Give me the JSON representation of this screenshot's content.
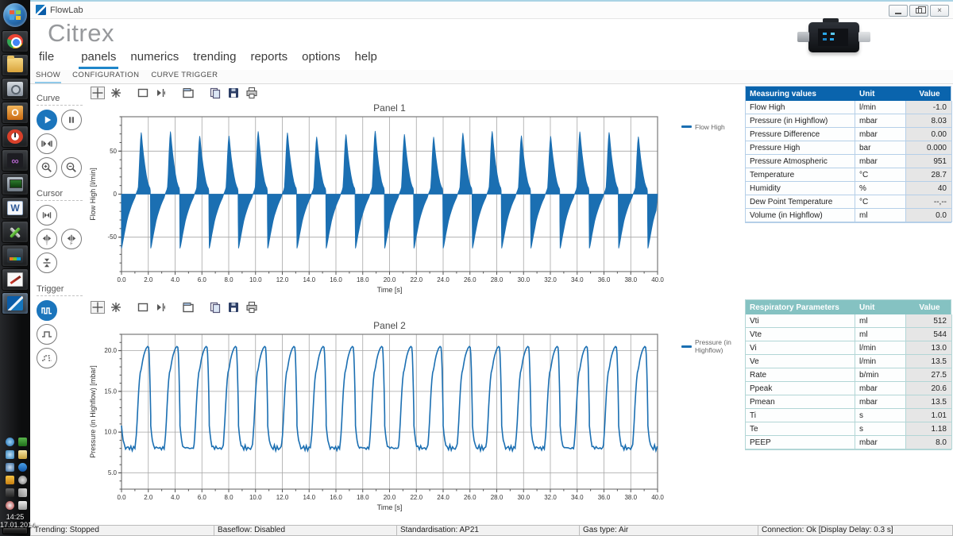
{
  "window": {
    "title": "FlowLab"
  },
  "app": {
    "title": "Citrex"
  },
  "taskbar": {
    "apps": [
      "chrome",
      "folder",
      "safe",
      "outlook",
      "timer",
      "vs",
      "remote",
      "word",
      "tools",
      "vmware",
      "paint",
      "flowlab"
    ],
    "app_glyph_letters": {
      "outlook": "O",
      "vs": "∞",
      "word": "W"
    },
    "tray": [
      "globe",
      "green-monitor",
      "gear-flower",
      "mail",
      "network",
      "bluetooth",
      "orange-app",
      "gray-dial",
      "battery",
      "signal",
      "volume-muted",
      "flag"
    ],
    "clock": "14:25",
    "date": "17.01.2014"
  },
  "window_controls": {
    "minimize": "minimize",
    "restore": "restore",
    "close": "×"
  },
  "menu": {
    "items": [
      {
        "label": "file",
        "active": false
      },
      {
        "label": "panels",
        "active": true
      },
      {
        "label": "numerics",
        "active": false
      },
      {
        "label": "trending",
        "active": false
      },
      {
        "label": "reports",
        "active": false
      },
      {
        "label": "options",
        "active": false
      },
      {
        "label": "help",
        "active": false
      }
    ]
  },
  "subtabs": {
    "items": [
      {
        "label": "SHOW",
        "active": true
      },
      {
        "label": "CONFIGURATION",
        "active": false
      },
      {
        "label": "CURVE TRIGGER",
        "active": false
      }
    ]
  },
  "tools": {
    "sections": [
      {
        "label": "Curve",
        "buttons": [
          "play",
          "pause",
          "fit",
          "zoom-in",
          "zoom-out"
        ],
        "active": [
          "play"
        ]
      },
      {
        "label": "Cursor",
        "buttons": [
          "cursor-center",
          "cursor-expand-t",
          "cursor-expand-f",
          "cursor-vertical"
        ],
        "active": []
      },
      {
        "label": "Trigger",
        "buttons": [
          "trigger-auto",
          "trigger-single",
          "trigger-dashed"
        ],
        "active": [
          "trigger-auto"
        ]
      }
    ]
  },
  "chart_toolbar": [
    "move",
    "zoom-star",
    "rect-select",
    "cursor-tool",
    "properties",
    "copy",
    "save",
    "print"
  ],
  "measuring_table": {
    "headers": [
      "Measuring values",
      "Unit",
      "Value"
    ],
    "rows": [
      [
        "Flow High",
        "l/min",
        "-1.0"
      ],
      [
        "Pressure (in Highflow)",
        "mbar",
        "8.03"
      ],
      [
        "Pressure Difference",
        "mbar",
        "0.00"
      ],
      [
        "Pressure High",
        "bar",
        "0.000"
      ],
      [
        "Pressure Atmospheric",
        "mbar",
        "951"
      ],
      [
        "Temperature",
        "°C",
        "28.7"
      ],
      [
        "Humidity",
        "%",
        "40"
      ],
      [
        "Dew Point Temperature",
        "°C",
        "--,--"
      ],
      [
        "Volume (in Highflow)",
        "ml",
        "0.0"
      ]
    ]
  },
  "respiratory_table": {
    "headers": [
      "Respiratory Parameters",
      "Unit",
      "Value"
    ],
    "rows": [
      [
        "Vti",
        "ml",
        "512"
      ],
      [
        "Vte",
        "ml",
        "544"
      ],
      [
        "Vi",
        "l/min",
        "13.0"
      ],
      [
        "Ve",
        "l/min",
        "13.5"
      ],
      [
        "Rate",
        "b/min",
        "27.5"
      ],
      [
        "Ppeak",
        "mbar",
        "20.6"
      ],
      [
        "Pmean",
        "mbar",
        "13.5"
      ],
      [
        "Ti",
        "s",
        "1.01"
      ],
      [
        "Te",
        "s",
        "1.18"
      ],
      [
        "PEEP",
        "mbar",
        "8.0"
      ]
    ]
  },
  "status_bar": {
    "segments": [
      "Trending: Stopped",
      "Baseflow: Disabled",
      "Standardisation: AP21",
      "Gas type: Air",
      "Connection: Ok [Display Delay: 0.3 s]"
    ]
  },
  "colors": {
    "accent_blue": "#1b75bc",
    "chart_line": "#1b6fb2",
    "menu_underline": "#1f86c9",
    "subtab_underline": "#8fc9e9",
    "measuring_header_bg": "#0a64ad",
    "respiratory_header_bg": "#85c2c2",
    "value_column_bg": "#e6e6e6",
    "grid": "#a6a6a6",
    "plot_border": "#7a7a7a"
  },
  "chart_data": [
    {
      "type": "area",
      "title": "Panel 1",
      "xlabel": "Time [s]",
      "ylabel": "Flow High [l/min]",
      "legend": "Flow High",
      "xlim": [
        0,
        40
      ],
      "xtick_step": 2,
      "xminor_step": 1,
      "xtick_decimals": 1,
      "ylim": [
        -90,
        90
      ],
      "yticks": [
        -50,
        0,
        50
      ],
      "ytick_labels": [
        "-50",
        "0",
        "50"
      ],
      "yminor_step": 10,
      "grid": true,
      "series": [
        {
          "name": "Flow High",
          "color": "#1b6fb2",
          "fill": true,
          "period_s": 2.182,
          "span_s": 40,
          "peak_variation": 0.05,
          "cycle_points": [
            [
              0,
              -63
            ],
            [
              0.05,
              -60
            ],
            [
              0.12,
              -54
            ],
            [
              0.2,
              -47
            ],
            [
              0.3,
              -39
            ],
            [
              0.4,
              -31
            ],
            [
              0.5,
              -25
            ],
            [
              0.62,
              -19
            ],
            [
              0.75,
              -13
            ],
            [
              0.88,
              -8
            ],
            [
              1.0,
              -4
            ],
            [
              1.08,
              0
            ],
            [
              1.15,
              3
            ],
            [
              1.2,
              5
            ],
            [
              1.25,
              8
            ],
            [
              1.3,
              22
            ],
            [
              1.36,
              45
            ],
            [
              1.42,
              62
            ],
            [
              1.47,
              70
            ],
            [
              1.5,
              67
            ],
            [
              1.56,
              57
            ],
            [
              1.64,
              45
            ],
            [
              1.74,
              33
            ],
            [
              1.85,
              22
            ],
            [
              1.95,
              14
            ],
            [
              2.05,
              9
            ],
            [
              2.12,
              7
            ],
            [
              2.15,
              4
            ],
            [
              2.16,
              -30
            ],
            [
              2.182,
              -63
            ]
          ]
        }
      ]
    },
    {
      "type": "line",
      "title": "Panel 2",
      "xlabel": "Time [s]",
      "ylabel": "Pressure (in Highflow) [mbar]",
      "legend": "Pressure (in Highflow)",
      "xlim": [
        0,
        40
      ],
      "xtick_step": 2,
      "xminor_step": 1,
      "xtick_decimals": 1,
      "ylim": [
        3,
        22
      ],
      "yticks": [
        5,
        10,
        15,
        20
      ],
      "ytick_labels": [
        "5.0",
        "10.0",
        "15.0",
        "20.0"
      ],
      "yminor_step": 1,
      "grid": true,
      "series": [
        {
          "name": "Pressure (in Highflow)",
          "color": "#1b6fb2",
          "fill": false,
          "period_s": 2.182,
          "span_s": 40,
          "baseline_noise": 0.18,
          "cycle_points": [
            [
              0,
              10.8
            ],
            [
              0.06,
              9.8
            ],
            [
              0.12,
              9.0
            ],
            [
              0.2,
              8.4
            ],
            [
              0.3,
              8.1
            ],
            [
              0.4,
              8.0
            ],
            [
              0.5,
              8.25
            ],
            [
              0.6,
              7.9
            ],
            [
              0.7,
              8.15
            ],
            [
              0.8,
              7.9
            ],
            [
              0.9,
              8.05
            ],
            [
              1.0,
              8.1
            ],
            [
              1.05,
              8.6
            ],
            [
              1.1,
              9.6
            ],
            [
              1.16,
              11.2
            ],
            [
              1.22,
              13.2
            ],
            [
              1.28,
              15.0
            ],
            [
              1.34,
              16.4
            ],
            [
              1.4,
              17.3
            ],
            [
              1.45,
              17.6
            ],
            [
              1.5,
              18.0
            ],
            [
              1.58,
              18.8
            ],
            [
              1.66,
              19.4
            ],
            [
              1.75,
              19.9
            ],
            [
              1.85,
              20.3
            ],
            [
              1.95,
              20.5
            ],
            [
              2.02,
              20.4
            ],
            [
              2.06,
              19.6
            ],
            [
              2.1,
              17.8
            ],
            [
              2.14,
              15.2
            ],
            [
              2.18,
              12.0
            ]
          ]
        }
      ]
    }
  ]
}
